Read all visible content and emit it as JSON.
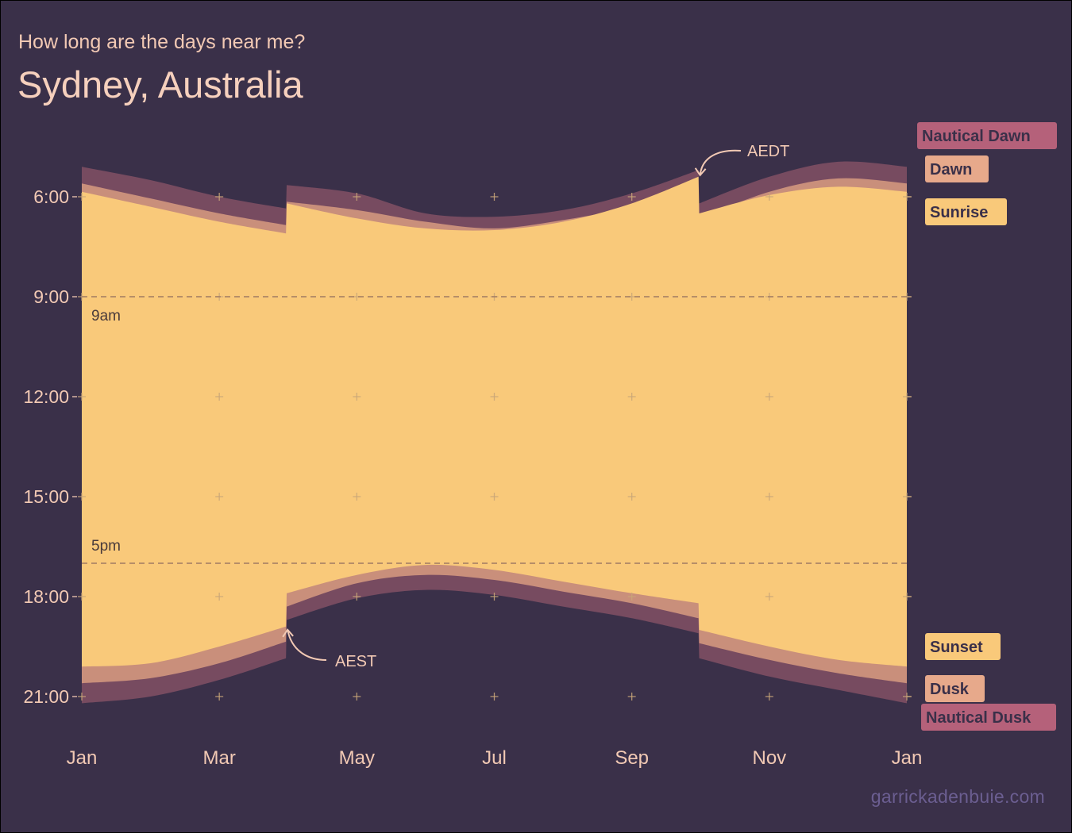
{
  "header": {
    "subtitle": "How long are the days near me?",
    "title": "Sydney, Australia"
  },
  "credit": "garrickadenbuie.com",
  "colors": {
    "background": "#3a3049",
    "daylight": "#f9c97a",
    "twilight_civil": "#c98f7b",
    "twilight_nautical": "#774b60",
    "text": "#f2c9b4",
    "tick_plus": "#c9a678",
    "ref_line": "#a07b62"
  },
  "chart_data": {
    "type": "area",
    "x_unit": "month of year (1.0 = Jan 1, 13.0 = following Jan 1)",
    "y_unit": "hour of day",
    "xlim": [
      1,
      13
    ],
    "ylim": [
      4.2,
      21.6
    ],
    "y_reversed": true,
    "x_ticks": [
      {
        "value": 1,
        "label": "Jan"
      },
      {
        "value": 3,
        "label": "Mar"
      },
      {
        "value": 5,
        "label": "May"
      },
      {
        "value": 7,
        "label": "Jul"
      },
      {
        "value": 9,
        "label": "Sep"
      },
      {
        "value": 11,
        "label": "Nov"
      },
      {
        "value": 13,
        "label": "Jan"
      }
    ],
    "y_ticks": [
      {
        "value": 6,
        "label": "6:00"
      },
      {
        "value": 9,
        "label": "9:00"
      },
      {
        "value": 12,
        "label": "12:00"
      },
      {
        "value": 15,
        "label": "15:00"
      },
      {
        "value": 18,
        "label": "18:00"
      },
      {
        "value": 21,
        "label": "21:00"
      }
    ],
    "reference_lines": [
      {
        "value": 9,
        "label": "9am"
      },
      {
        "value": 17,
        "label": "5pm"
      }
    ],
    "dst_breaks": [
      3.97,
      9.97
    ],
    "series": [
      {
        "name": "Nautical Dawn",
        "x": [
          1,
          2,
          3,
          3.97,
          3.98,
          5,
          6,
          7,
          8,
          9,
          9.97,
          9.98,
          11,
          12,
          13
        ],
        "y": [
          5.1,
          5.5,
          6.0,
          6.35,
          5.65,
          5.9,
          6.5,
          6.6,
          6.4,
          5.9,
          5.2,
          6.2,
          5.4,
          4.95,
          5.1
        ]
      },
      {
        "name": "Dawn",
        "x": [
          1,
          2,
          3,
          3.97,
          3.98,
          5,
          6,
          7,
          8,
          9,
          9.97,
          9.98,
          11,
          12,
          13
        ],
        "y": [
          5.6,
          6.05,
          6.5,
          6.85,
          6.15,
          6.4,
          6.75,
          6.95,
          6.7,
          6.3,
          5.7,
          6.65,
          5.85,
          5.45,
          5.6
        ]
      },
      {
        "name": "Sunrise",
        "x": [
          1,
          2,
          3,
          3.97,
          3.98,
          5,
          6,
          7,
          8,
          9,
          9.97,
          9.98,
          11,
          12,
          13
        ],
        "y": [
          5.85,
          6.3,
          6.75,
          7.1,
          6.2,
          6.65,
          6.95,
          7.0,
          6.75,
          6.2,
          5.4,
          6.5,
          5.95,
          5.7,
          5.85
        ]
      },
      {
        "name": "Sunset",
        "x": [
          1,
          2,
          3,
          3.97,
          3.98,
          5,
          6,
          7,
          8,
          9,
          9.97,
          9.98,
          11,
          12,
          13
        ],
        "y": [
          20.1,
          20.0,
          19.5,
          18.9,
          17.9,
          17.35,
          17.05,
          17.2,
          17.55,
          17.9,
          18.2,
          19.0,
          19.5,
          19.9,
          20.1
        ]
      },
      {
        "name": "Dusk",
        "x": [
          1,
          2,
          3,
          3.97,
          3.98,
          5,
          6,
          7,
          8,
          9,
          9.97,
          9.98,
          11,
          12,
          13
        ],
        "y": [
          20.6,
          20.45,
          20.0,
          19.35,
          18.3,
          17.6,
          17.35,
          17.5,
          17.85,
          18.2,
          18.65,
          19.4,
          19.9,
          20.3,
          20.6
        ]
      },
      {
        "name": "Nautical Dusk",
        "x": [
          1,
          2,
          3,
          3.97,
          3.98,
          5,
          6,
          7,
          8,
          9,
          9.97,
          9.98,
          11,
          12,
          13
        ],
        "y": [
          21.2,
          21.0,
          20.5,
          19.85,
          18.7,
          18.05,
          17.8,
          17.95,
          18.3,
          18.65,
          19.1,
          19.85,
          20.4,
          20.8,
          21.2
        ]
      }
    ],
    "annotations": [
      {
        "text": "AEDT",
        "x": 9.97,
        "y": 5.4
      },
      {
        "text": "AEST",
        "x": 3.97,
        "y": 18.9
      }
    ]
  }
}
